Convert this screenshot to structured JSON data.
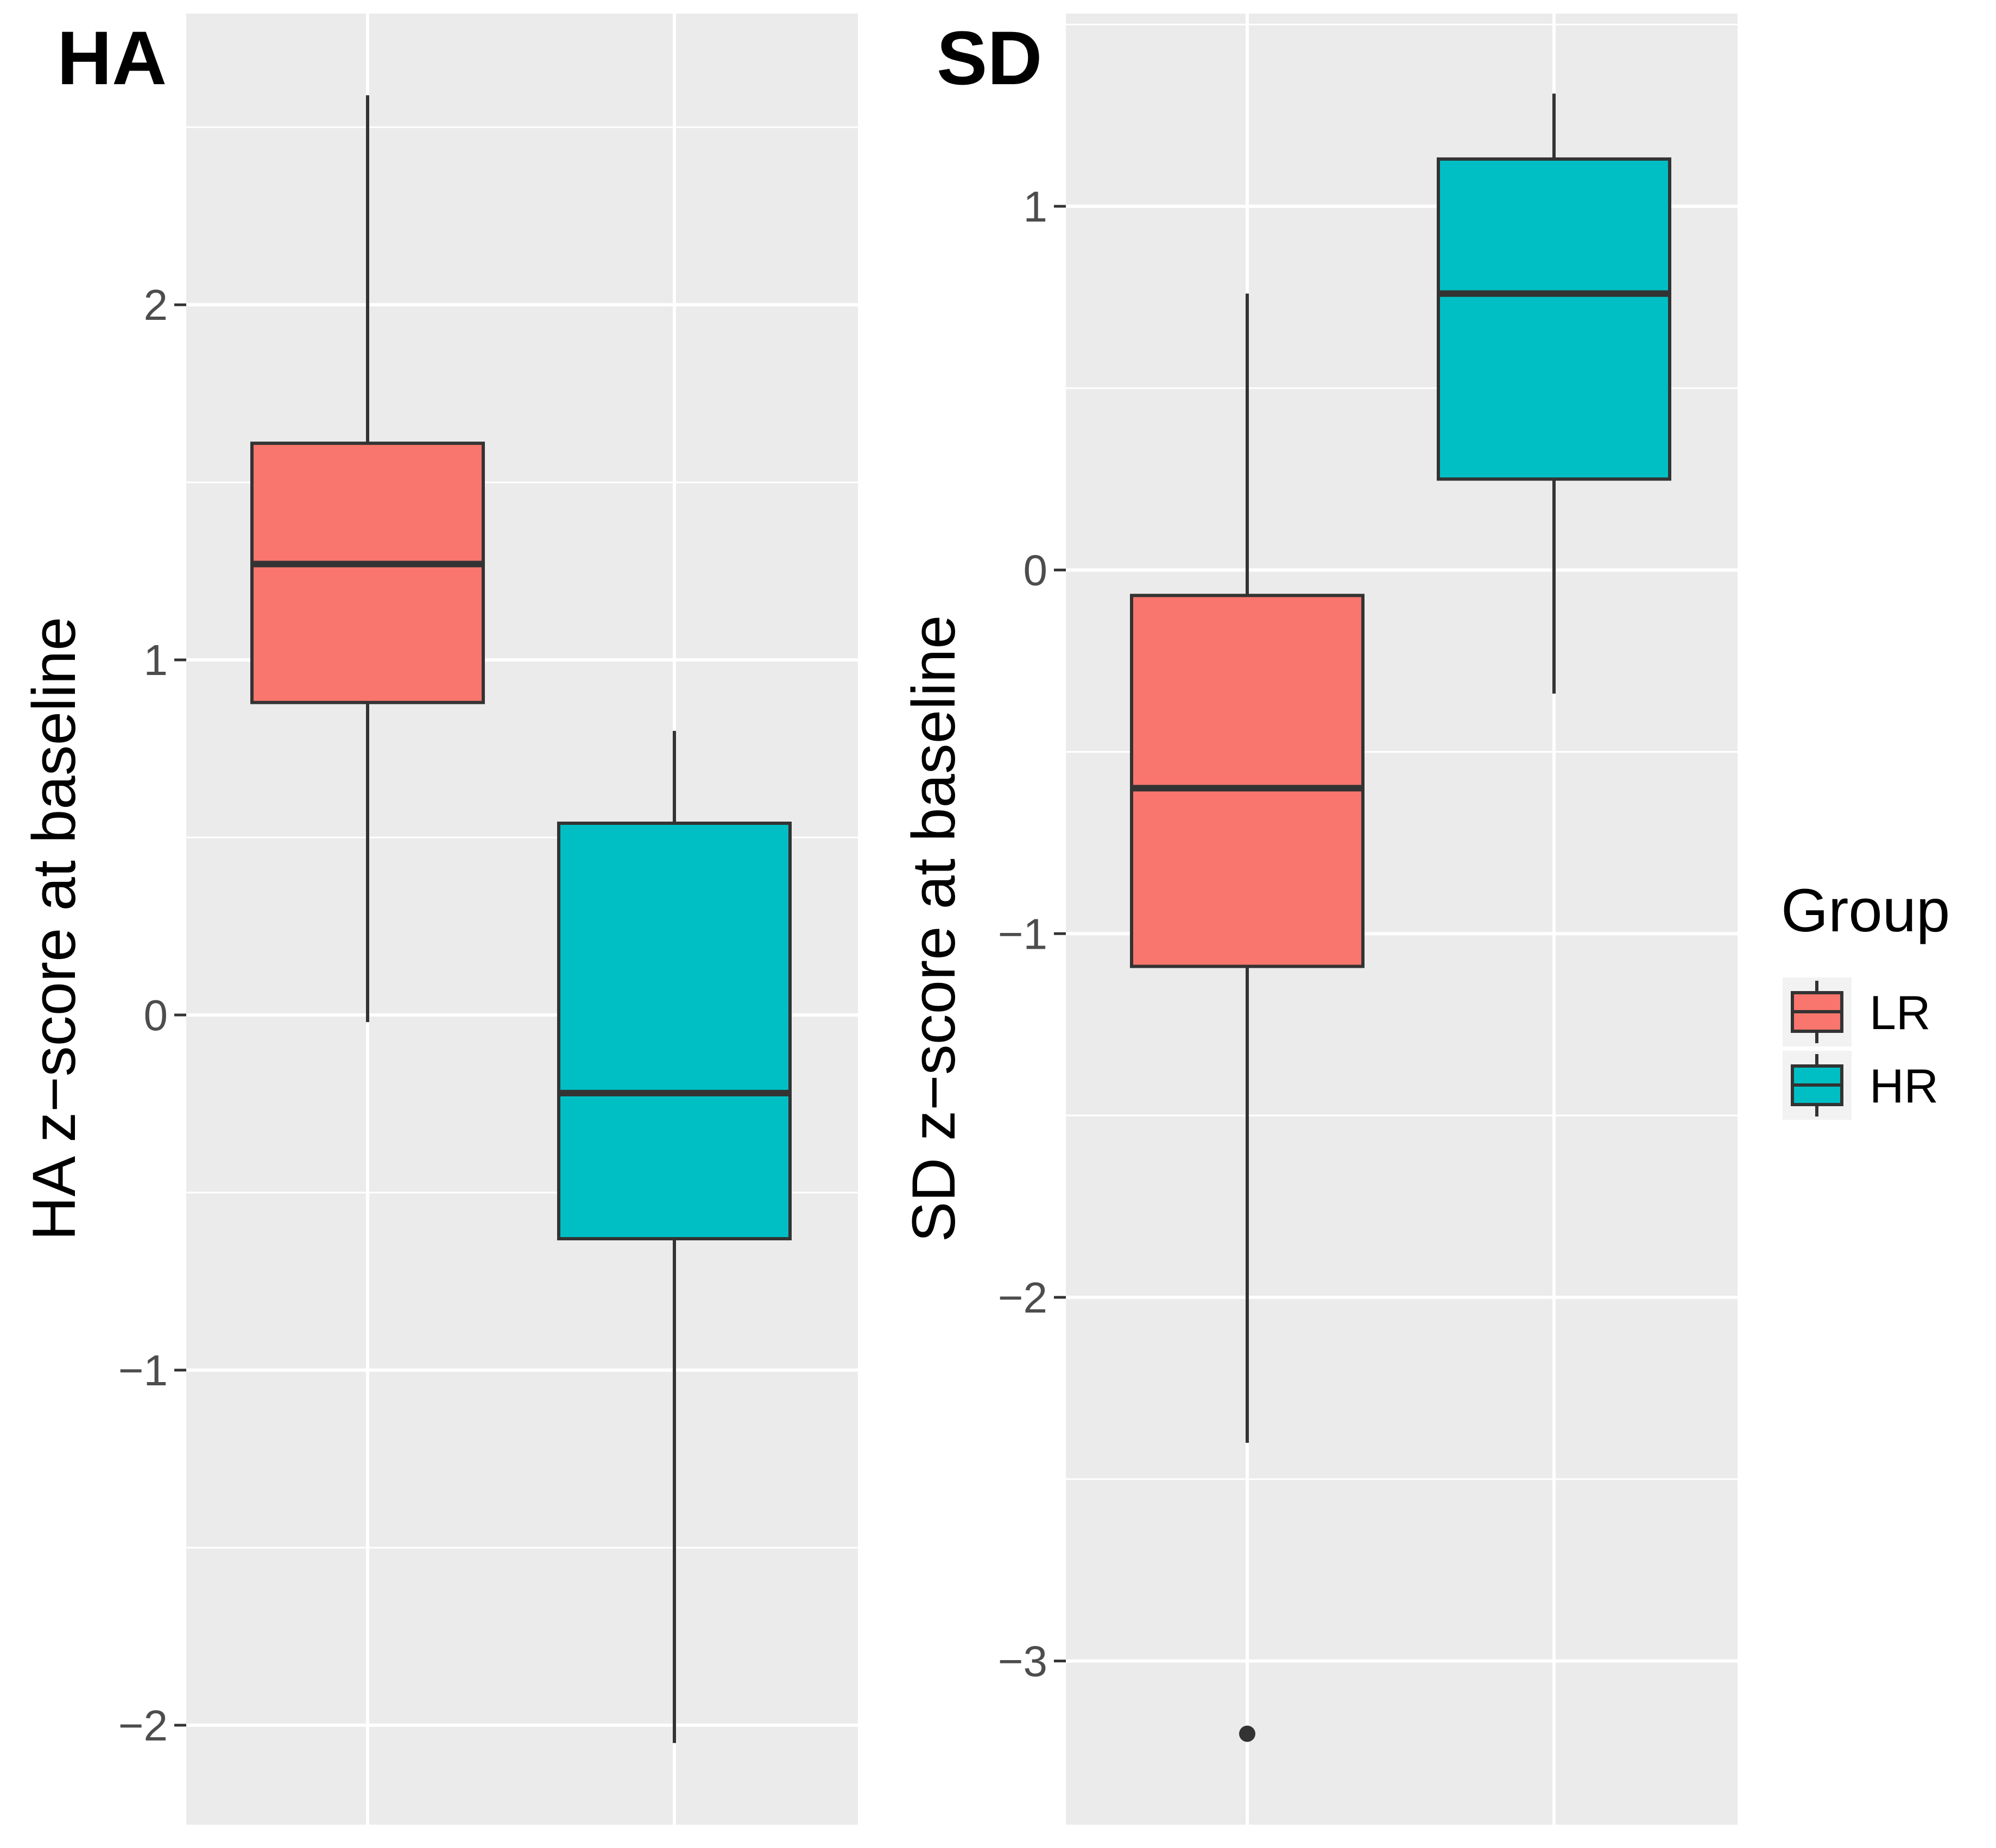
{
  "chart_data": [
    {
      "type": "boxplot",
      "tag": "HA",
      "ylabel": "HA z−score at baseline",
      "xlabel": "",
      "ylim": [
        -2.28,
        2.82
      ],
      "yticks": [
        2,
        1,
        0,
        -1,
        -2
      ],
      "ytick_labels": [
        "2",
        "1",
        "0",
        "−1",
        "−2"
      ],
      "grid": true,
      "groups": [
        {
          "name": "LR",
          "color": "#F8766D",
          "whisker_low": -0.02,
          "q1": 0.88,
          "median": 1.27,
          "q3": 1.61,
          "whisker_high": 2.59,
          "outliers": []
        },
        {
          "name": "HR",
          "color": "#00BFC4",
          "whisker_low": -2.05,
          "q1": -0.63,
          "median": -0.22,
          "q3": 0.54,
          "whisker_high": 0.8,
          "outliers": []
        }
      ]
    },
    {
      "type": "boxplot",
      "tag": "SD",
      "ylabel": "SD z−score at baseline",
      "xlabel": "",
      "ylim": [
        -3.45,
        1.53
      ],
      "yticks": [
        1,
        0,
        -1,
        -2,
        -3
      ],
      "ytick_labels": [
        "1",
        "0",
        "−1",
        "−2",
        "−3"
      ],
      "grid": true,
      "groups": [
        {
          "name": "LR",
          "color": "#F8766D",
          "whisker_low": -2.4,
          "q1": -1.09,
          "median": -0.6,
          "q3": -0.07,
          "whisker_high": 0.76,
          "outliers": [
            -3.2
          ]
        },
        {
          "name": "HR",
          "color": "#00BFC4",
          "whisker_low": -0.34,
          "q1": 0.25,
          "median": 0.76,
          "q3": 1.13,
          "whisker_high": 1.31,
          "outliers": []
        }
      ]
    }
  ],
  "legend": {
    "title": "Group",
    "position": "right",
    "items": [
      {
        "label": "LR",
        "color": "#F8766D"
      },
      {
        "label": "HR",
        "color": "#00BFC4"
      }
    ]
  }
}
